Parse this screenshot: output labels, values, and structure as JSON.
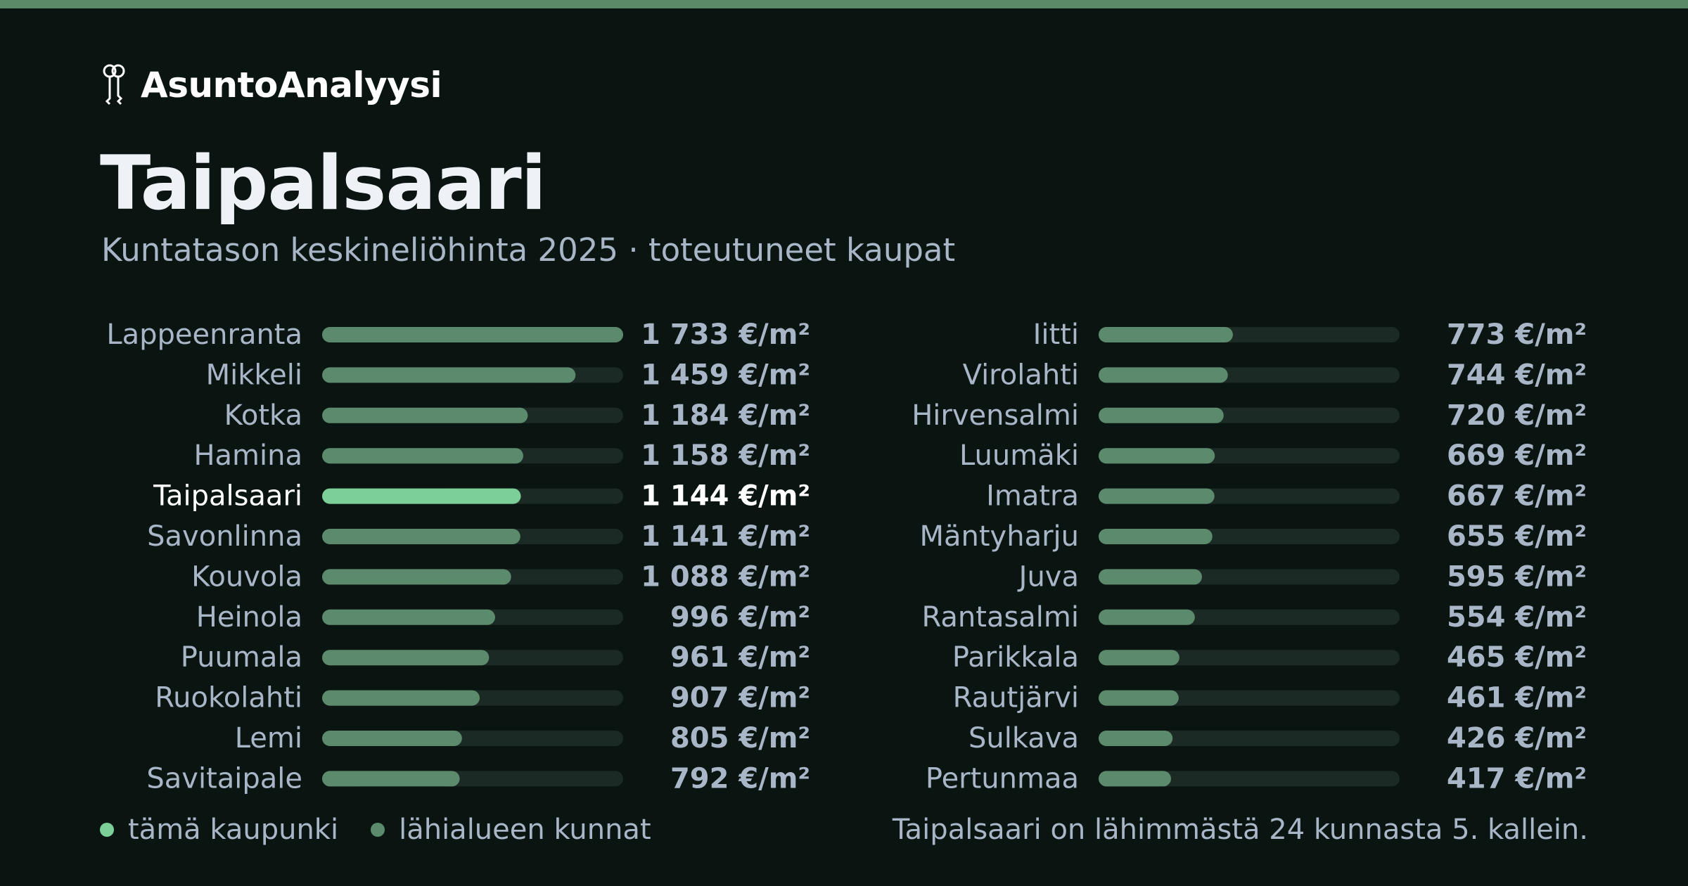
{
  "brand": {
    "name": "AsuntoAnalyysi",
    "icon": "keys-icon"
  },
  "page": {
    "title": "Taipalsaari",
    "subtitle": "Kuntatason keskineliöhinta 2025 · toteutuneet kaupat"
  },
  "colors": {
    "background": "#0a1512",
    "top_bar": "#5a8a68",
    "highlight_bar": "#7dcf98",
    "neighbor_bar": "#5c8a6c",
    "track": "#1b2a25",
    "label": "#a9b6c8",
    "highlight_label": "#ffffff"
  },
  "chart_data": {
    "type": "bar",
    "orientation": "horizontal",
    "unit": "€/m²",
    "highlight": "Taipalsaari",
    "xlim": [
      0,
      1733
    ],
    "series": [
      {
        "values": [
          {
            "label": "Lappeenranta",
            "value": 1733,
            "value_text": "1 733 €/m²"
          },
          {
            "label": "Mikkeli",
            "value": 1459,
            "value_text": "1 459 €/m²"
          },
          {
            "label": "Kotka",
            "value": 1184,
            "value_text": "1 184 €/m²"
          },
          {
            "label": "Hamina",
            "value": 1158,
            "value_text": "1 158 €/m²"
          },
          {
            "label": "Taipalsaari",
            "value": 1144,
            "value_text": "1 144 €/m²"
          },
          {
            "label": "Savonlinna",
            "value": 1141,
            "value_text": "1 141 €/m²"
          },
          {
            "label": "Kouvola",
            "value": 1088,
            "value_text": "1 088 €/m²"
          },
          {
            "label": "Heinola",
            "value": 996,
            "value_text": "996 €/m²"
          },
          {
            "label": "Puumala",
            "value": 961,
            "value_text": "961 €/m²"
          },
          {
            "label": "Ruokolahti",
            "value": 907,
            "value_text": "907 €/m²"
          },
          {
            "label": "Lemi",
            "value": 805,
            "value_text": "805 €/m²"
          },
          {
            "label": "Savitaipale",
            "value": 792,
            "value_text": "792 €/m²"
          },
          {
            "label": "Iitti",
            "value": 773,
            "value_text": "773 €/m²"
          },
          {
            "label": "Virolahti",
            "value": 744,
            "value_text": "744 €/m²"
          },
          {
            "label": "Hirvensalmi",
            "value": 720,
            "value_text": "720 €/m²"
          },
          {
            "label": "Luumäki",
            "value": 669,
            "value_text": "669 €/m²"
          },
          {
            "label": "Imatra",
            "value": 667,
            "value_text": "667 €/m²"
          },
          {
            "label": "Mäntyharju",
            "value": 655,
            "value_text": "655 €/m²"
          },
          {
            "label": "Juva",
            "value": 595,
            "value_text": "595 €/m²"
          },
          {
            "label": "Rantasalmi",
            "value": 554,
            "value_text": "554 €/m²"
          },
          {
            "label": "Parikkala",
            "value": 465,
            "value_text": "465 €/m²"
          },
          {
            "label": "Rautjärvi",
            "value": 461,
            "value_text": "461 €/m²"
          },
          {
            "label": "Sulkava",
            "value": 426,
            "value_text": "426 €/m²"
          },
          {
            "label": "Pertunmaa",
            "value": 417,
            "value_text": "417 €/m²"
          }
        ]
      }
    ]
  },
  "legend": {
    "this_city": "tämä kaupunki",
    "nearby": "lähialueen kunnat"
  },
  "footnote": "Taipalsaari on lähimmästä 24 kunnasta 5. kallein."
}
